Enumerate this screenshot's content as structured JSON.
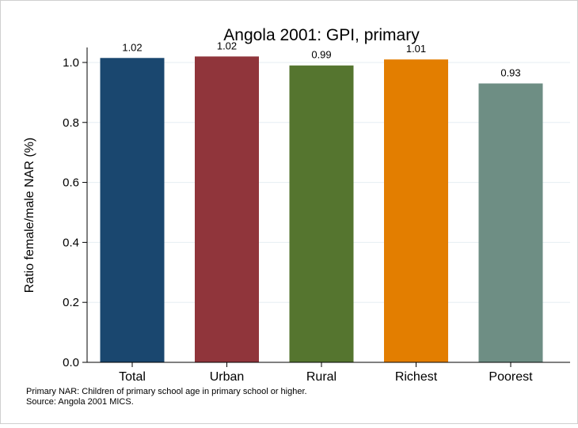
{
  "chart_data": {
    "type": "bar",
    "title": "Angola 2001: GPI, primary",
    "xlabel": "",
    "ylabel": "Ratio female/male NAR (%)",
    "categories": [
      "Total",
      "Urban",
      "Rural",
      "Richest",
      "Poorest"
    ],
    "values": [
      1.015,
      1.02,
      0.99,
      1.01,
      0.93
    ],
    "data_labels": [
      "1.02",
      "1.02",
      "0.99",
      "1.01",
      "0.93"
    ],
    "bar_colors": [
      "#1a476f",
      "#90353b",
      "#55752f",
      "#e37e00",
      "#6e8e84"
    ],
    "ylim": [
      0,
      1.05
    ],
    "yticks": [
      0,
      0.2,
      0.4,
      0.6,
      0.8,
      1.0
    ],
    "ytick_labels": [
      "0.0",
      "0.2",
      "0.4",
      "0.6",
      "0.8",
      "1.0"
    ],
    "grid": true,
    "legend": "none"
  },
  "notes": {
    "line1": "Primary NAR: Children of primary school age in primary school or higher.",
    "line2": "Source: Angola 2001 MICS."
  }
}
